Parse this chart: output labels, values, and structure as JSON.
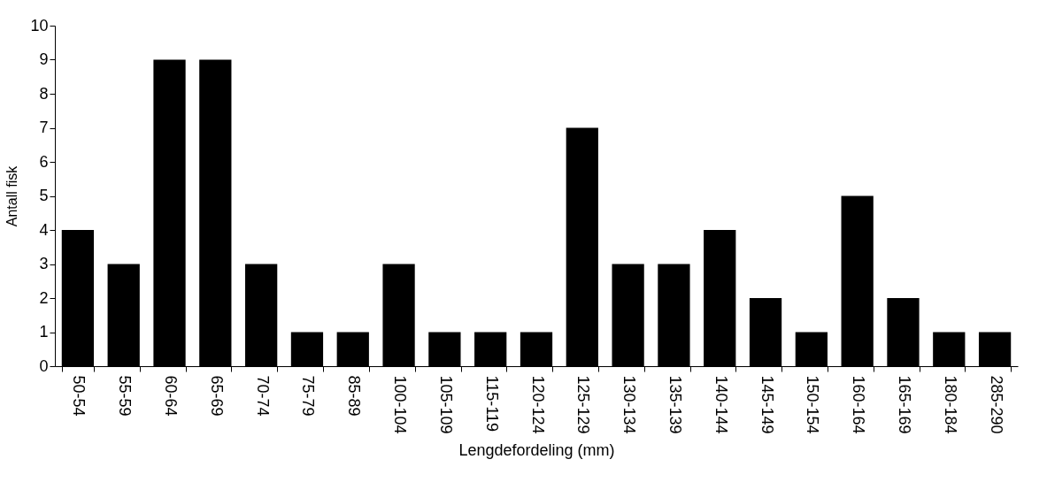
{
  "chart_data": {
    "type": "bar",
    "xlabel": "Lengdefordeling (mm)",
    "ylabel": "Antall fisk",
    "categories": [
      "50-54",
      "55-59",
      "60-64",
      "65-69",
      "70-74",
      "75-79",
      "85-89",
      "100-104",
      "105-109",
      "115-119",
      "120-124",
      "125-129",
      "130-134",
      "135-139",
      "140-144",
      "145-149",
      "150-154",
      "160-164",
      "165-169",
      "180-184",
      "285-290"
    ],
    "values": [
      4,
      3,
      9,
      9,
      3,
      1,
      1,
      3,
      1,
      1,
      1,
      7,
      3,
      3,
      4,
      2,
      1,
      5,
      2,
      1,
      1
    ],
    "color": "#000000",
    "ylim": [
      0,
      10
    ],
    "yticks": [
      0,
      1,
      2,
      3,
      4,
      5,
      6,
      7,
      8,
      9,
      10
    ],
    "grid": false
  }
}
